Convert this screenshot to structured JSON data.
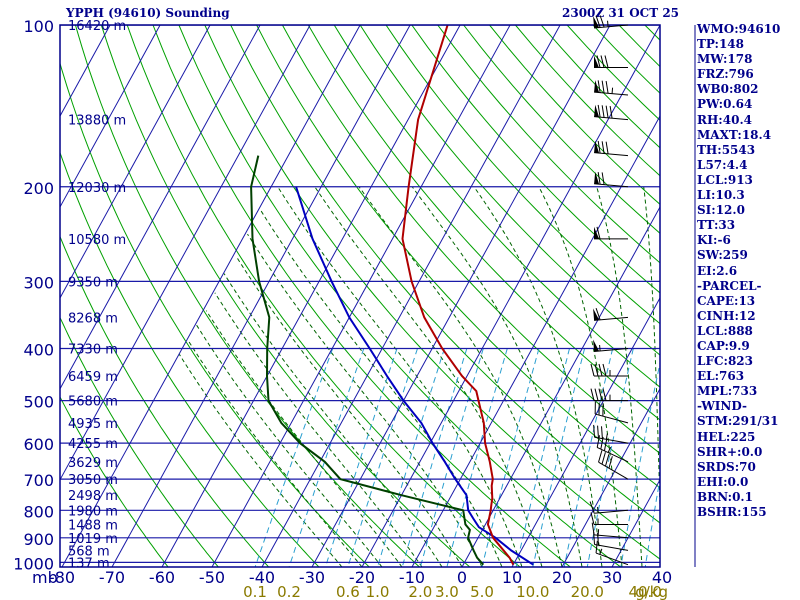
{
  "header": {
    "title": "YPPH (94610) Sounding",
    "time": "2300Z 31 OCT 25"
  },
  "colors": {
    "frame": "#00008b",
    "grid": "#1a1aa8",
    "dry_adiabat": "#00a000",
    "moist_adiabat": "#006400",
    "mixing_ratio": "#2a9fd0",
    "temperature": "#b00000",
    "dewpoint": "#004000",
    "parcel": "#0000c0",
    "axis_text": "#00008b",
    "mixing_text": "#8a7a00"
  },
  "chart_data": {
    "type": "line",
    "xlabel_unit": "mb",
    "mixing_unit": "g/kg",
    "temperature_ticks": [
      -80,
      -70,
      -60,
      -50,
      -40,
      -30,
      -20,
      -10,
      0,
      10,
      20,
      30,
      40
    ],
    "pressure_ticks": [
      100,
      200,
      300,
      400,
      500,
      600,
      700,
      800,
      900,
      1000
    ],
    "height_labels": [
      {
        "p": 100,
        "label": "16420 m"
      },
      {
        "p": 150,
        "label": "13880 m"
      },
      {
        "p": 200,
        "label": "12030 m"
      },
      {
        "p": 250,
        "label": "10580 m"
      },
      {
        "p": 300,
        "label": "9350 m"
      },
      {
        "p": 350,
        "label": "8268 m"
      },
      {
        "p": 400,
        "label": "7330 m"
      },
      {
        "p": 450,
        "label": "6459 m"
      },
      {
        "p": 500,
        "label": "5680 m"
      },
      {
        "p": 550,
        "label": "4935 m"
      },
      {
        "p": 600,
        "label": "4255 m"
      },
      {
        "p": 650,
        "label": "3629 m"
      },
      {
        "p": 700,
        "label": "3050 m"
      },
      {
        "p": 750,
        "label": "2498 m"
      },
      {
        "p": 800,
        "label": "1980 m"
      },
      {
        "p": 850,
        "label": "1488 m"
      },
      {
        "p": 900,
        "label": "1019 m"
      },
      {
        "p": 950,
        "label": "568 m"
      },
      {
        "p": 1000,
        "label": "137 m"
      }
    ],
    "mixing_ratio_labels": [
      {
        "w": 0.1,
        "label": "0.1"
      },
      {
        "w": 0.2,
        "label": "0.2"
      },
      {
        "w": 0.6,
        "label": "0.6"
      },
      {
        "w": 1.0,
        "label": "1.0"
      },
      {
        "w": 2.0,
        "label": "2.0"
      },
      {
        "w": 3.0,
        "label": "3.0"
      },
      {
        "w": 5.0,
        "label": "5.0"
      },
      {
        "w": 10.0,
        "label": "10.0"
      },
      {
        "w": 20.0,
        "label": "20.0"
      },
      {
        "w": 40.0,
        "label": "40.0"
      }
    ],
    "temperature_profile": [
      [
        1010,
        10
      ],
      [
        980,
        8.5
      ],
      [
        900,
        3
      ],
      [
        850,
        0.5
      ],
      [
        800,
        -0.5
      ],
      [
        780,
        -1
      ],
      [
        760,
        -1.5
      ],
      [
        720,
        -3
      ],
      [
        700,
        -3.5
      ],
      [
        650,
        -6
      ],
      [
        600,
        -9
      ],
      [
        550,
        -11.5
      ],
      [
        500,
        -15
      ],
      [
        480,
        -16.5
      ],
      [
        450,
        -21
      ],
      [
        400,
        -28
      ],
      [
        350,
        -35
      ],
      [
        300,
        -41.5
      ],
      [
        250,
        -48
      ],
      [
        200,
        -52.5
      ],
      [
        150,
        -58
      ],
      [
        100,
        -62.5
      ]
    ],
    "dewpoint_profile": [
      [
        1010,
        4
      ],
      [
        980,
        2
      ],
      [
        950,
        0.5
      ],
      [
        900,
        -2
      ],
      [
        870,
        -2.5
      ],
      [
        850,
        -4
      ],
      [
        800,
        -6
      ],
      [
        750,
        -20
      ],
      [
        700,
        -34
      ],
      [
        650,
        -39
      ],
      [
        600,
        -46
      ],
      [
        550,
        -52
      ],
      [
        500,
        -57
      ],
      [
        450,
        -60
      ],
      [
        400,
        -63
      ],
      [
        350,
        -66
      ],
      [
        300,
        -72
      ],
      [
        250,
        -78
      ],
      [
        200,
        -84
      ],
      [
        175,
        -86
      ]
    ],
    "parcel_profile": [
      [
        1010,
        14
      ],
      [
        950,
        8
      ],
      [
        900,
        3.5
      ],
      [
        860,
        -1
      ],
      [
        830,
        -3
      ],
      [
        800,
        -5
      ],
      [
        750,
        -7
      ],
      [
        700,
        -11
      ],
      [
        650,
        -15
      ],
      [
        600,
        -19.5
      ],
      [
        550,
        -24
      ],
      [
        500,
        -30
      ],
      [
        450,
        -36
      ],
      [
        400,
        -42.5
      ],
      [
        350,
        -50
      ],
      [
        300,
        -57.5
      ],
      [
        250,
        -66
      ],
      [
        200,
        -75
      ]
    ],
    "wind_barbs": [
      {
        "p": 1010,
        "dir": 290,
        "spd": 15
      },
      {
        "p": 950,
        "dir": 280,
        "spd": 20
      },
      {
        "p": 900,
        "dir": 275,
        "spd": 15
      },
      {
        "p": 850,
        "dir": 270,
        "spd": 15
      },
      {
        "p": 800,
        "dir": 265,
        "spd": 15
      },
      {
        "p": 700,
        "dir": 300,
        "spd": 40
      },
      {
        "p": 650,
        "dir": 295,
        "spd": 35
      },
      {
        "p": 600,
        "dir": 280,
        "spd": 35
      },
      {
        "p": 550,
        "dir": 285,
        "spd": 30
      },
      {
        "p": 500,
        "dir": 270,
        "spd": 45
      },
      {
        "p": 450,
        "dir": 270,
        "spd": 45
      },
      {
        "p": 400,
        "dir": 265,
        "spd": 55
      },
      {
        "p": 350,
        "dir": 265,
        "spd": 60
      },
      {
        "p": 250,
        "dir": 270,
        "spd": 60
      },
      {
        "p": 200,
        "dir": 275,
        "spd": 70
      },
      {
        "p": 175,
        "dir": 275,
        "spd": 80
      },
      {
        "p": 150,
        "dir": 275,
        "spd": 90
      },
      {
        "p": 135,
        "dir": 275,
        "spd": 85
      },
      {
        "p": 120,
        "dir": 270,
        "spd": 80
      },
      {
        "p": 100,
        "dir": 265,
        "spd": 75
      }
    ]
  },
  "indices": [
    "WMO:94610",
    "TP:148",
    "MW:178",
    "FRZ:796",
    "WB0:802",
    "PW:0.64",
    "RH:40.4",
    "MAXT:18.4",
    "TH:5543",
    "L57:4.4",
    "LCL:913",
    "LI:10.3",
    "SI:12.0",
    "TT:33",
    "KI:-6",
    "SW:259",
    "EI:2.6",
    "-PARCEL-",
    "CAPE:13",
    "CINH:12",
    "LCL:888",
    "CAP:9.9",
    "LFC:823",
    "EL:763",
    "MPL:733",
    "-WIND-",
    "STM:291/31",
    "HEL:225",
    "SHR+:0.0",
    "SRDS:70",
    "EHI:0.0",
    "BRN:0.1",
    "BSHR:155"
  ]
}
